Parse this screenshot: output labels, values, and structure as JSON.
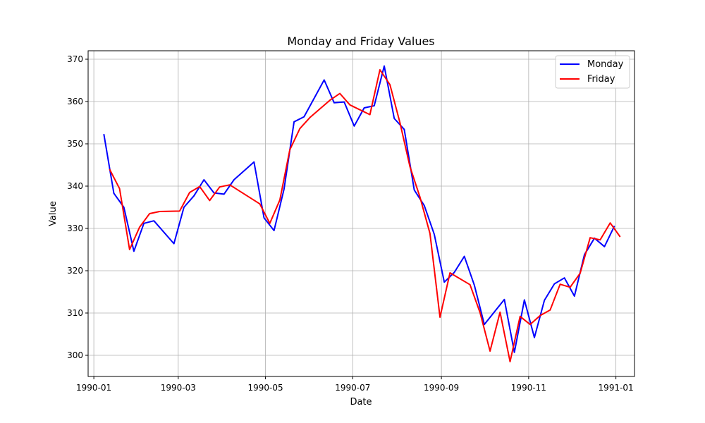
{
  "chart_data": {
    "type": "line",
    "title": "Monday and Friday Values",
    "xlabel": "Date",
    "ylabel": "Value",
    "xlim": [
      "1989-12-28",
      "1991-01-14"
    ],
    "ylim": [
      295,
      372
    ],
    "x_ticks": [
      "1990-01-01",
      "1990-03-01",
      "1990-05-01",
      "1990-07-01",
      "1990-09-01",
      "1990-11-01",
      "1991-01-01"
    ],
    "x_tick_labels": [
      "1990-01",
      "1990-03",
      "1990-05",
      "1990-07",
      "1990-09",
      "1990-11",
      "1991-01"
    ],
    "y_ticks": [
      300,
      310,
      320,
      330,
      340,
      350,
      360,
      370
    ],
    "grid": true,
    "legend_position": "top-right",
    "series": [
      {
        "name": "Monday",
        "color": "#0000ff",
        "points": [
          [
            "1990-01-08",
            352.3
          ],
          [
            "1990-01-15",
            338.3
          ],
          [
            "1990-01-22",
            335.0
          ],
          [
            "1990-01-29",
            324.6
          ],
          [
            "1990-02-05",
            331.2
          ],
          [
            "1990-02-12",
            331.8
          ],
          [
            "1990-02-26",
            326.4
          ],
          [
            "1990-03-05",
            335.0
          ],
          [
            "1990-03-12",
            337.7
          ],
          [
            "1990-03-19",
            341.5
          ],
          [
            "1990-03-26",
            338.4
          ],
          [
            "1990-04-02",
            338.1
          ],
          [
            "1990-04-09",
            341.5
          ],
          [
            "1990-04-23",
            345.7
          ],
          [
            "1990-04-30",
            332.5
          ],
          [
            "1990-05-07",
            329.5
          ],
          [
            "1990-05-14",
            339.3
          ],
          [
            "1990-05-21",
            355.2
          ],
          [
            "1990-05-28",
            356.4
          ],
          [
            "1990-06-11",
            365.1
          ],
          [
            "1990-06-18",
            359.7
          ],
          [
            "1990-06-25",
            359.9
          ],
          [
            "1990-07-02",
            354.2
          ],
          [
            "1990-07-09",
            358.5
          ],
          [
            "1990-07-16",
            359.0
          ],
          [
            "1990-07-23",
            368.4
          ],
          [
            "1990-07-30",
            356.0
          ],
          [
            "1990-08-06",
            353.4
          ],
          [
            "1990-08-13",
            339.1
          ],
          [
            "1990-08-20",
            335.4
          ],
          [
            "1990-08-27",
            328.6
          ],
          [
            "1990-09-03",
            317.3
          ],
          [
            "1990-09-10",
            319.6
          ],
          [
            "1990-09-17",
            323.4
          ],
          [
            "1990-09-24",
            316.6
          ],
          [
            "1990-10-01",
            307.3
          ],
          [
            "1990-10-15",
            313.2
          ],
          [
            "1990-10-22",
            300.7
          ],
          [
            "1990-10-29",
            313.1
          ],
          [
            "1990-11-05",
            304.2
          ],
          [
            "1990-11-12",
            313.0
          ],
          [
            "1990-11-19",
            316.9
          ],
          [
            "1990-11-26",
            318.3
          ],
          [
            "1990-12-03",
            314.0
          ],
          [
            "1990-12-10",
            323.8
          ],
          [
            "1990-12-17",
            327.7
          ],
          [
            "1990-12-24",
            325.7
          ],
          [
            "1990-12-31",
            330.6
          ]
        ]
      },
      {
        "name": "Friday",
        "color": "#ff0000",
        "points": [
          [
            "1990-01-12",
            344.0
          ],
          [
            "1990-01-19",
            339.4
          ],
          [
            "1990-01-26",
            325.0
          ],
          [
            "1990-02-02",
            330.3
          ],
          [
            "1990-02-09",
            333.5
          ],
          [
            "1990-02-16",
            334.0
          ],
          [
            "1990-03-02",
            334.1
          ],
          [
            "1990-03-09",
            338.5
          ],
          [
            "1990-03-16",
            339.9
          ],
          [
            "1990-03-23",
            336.6
          ],
          [
            "1990-03-30",
            339.8
          ],
          [
            "1990-04-06",
            340.3
          ],
          [
            "1990-04-27",
            335.8
          ],
          [
            "1990-05-04",
            331.2
          ],
          [
            "1990-05-11",
            336.7
          ],
          [
            "1990-05-18",
            348.6
          ],
          [
            "1990-05-25",
            353.6
          ],
          [
            "1990-06-01",
            356.2
          ],
          [
            "1990-06-15",
            360.3
          ],
          [
            "1990-06-22",
            361.9
          ],
          [
            "1990-06-29",
            359.2
          ],
          [
            "1990-07-13",
            356.9
          ],
          [
            "1990-07-20",
            367.5
          ],
          [
            "1990-07-27",
            364.0
          ],
          [
            "1990-08-03",
            355.0
          ],
          [
            "1990-08-10",
            344.6
          ],
          [
            "1990-08-17",
            337.4
          ],
          [
            "1990-08-24",
            328.8
          ],
          [
            "1990-08-31",
            309.0
          ],
          [
            "1990-09-07",
            319.5
          ],
          [
            "1990-09-21",
            316.7
          ],
          [
            "1990-09-28",
            310.1
          ],
          [
            "1990-10-05",
            301.0
          ],
          [
            "1990-10-12",
            310.2
          ],
          [
            "1990-10-19",
            298.5
          ],
          [
            "1990-10-26",
            309.2
          ],
          [
            "1990-11-02",
            307.3
          ],
          [
            "1990-11-09",
            309.4
          ],
          [
            "1990-11-16",
            310.7
          ],
          [
            "1990-11-23",
            316.8
          ],
          [
            "1990-11-30",
            316.1
          ],
          [
            "1990-12-07",
            319.4
          ],
          [
            "1990-12-14",
            327.8
          ],
          [
            "1990-12-21",
            327.3
          ],
          [
            "1990-12-28",
            331.3
          ],
          [
            "1991-01-04",
            328.0
          ]
        ]
      }
    ]
  }
}
